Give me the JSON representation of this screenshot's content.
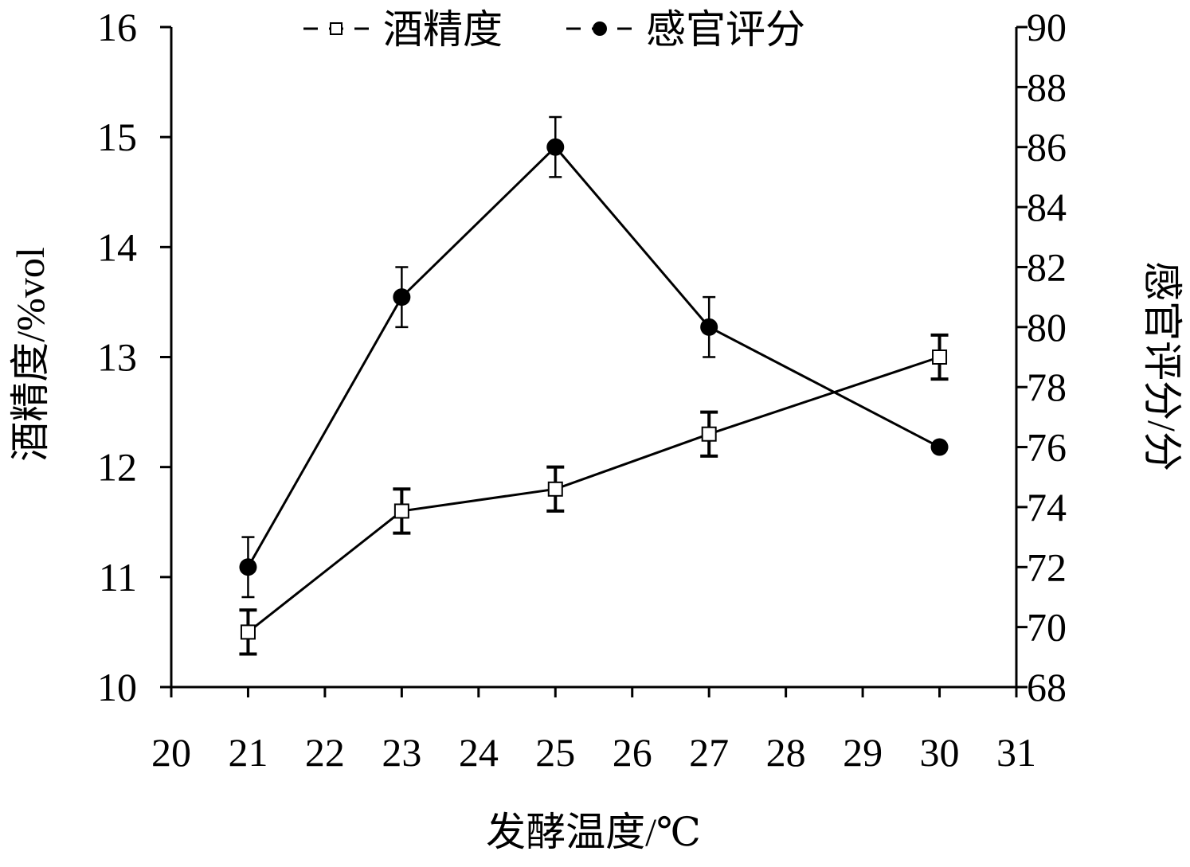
{
  "chart_data": {
    "type": "line",
    "xlabel": "发酵温度/℃",
    "ylabel_left": "酒精度/%vol",
    "ylabel_right": "感官评分/分",
    "x_ticks": [
      20,
      21,
      22,
      23,
      24,
      25,
      26,
      27,
      28,
      29,
      30,
      31
    ],
    "xlim": [
      20,
      31
    ],
    "ylim_left": [
      10,
      16
    ],
    "ylim_right": [
      68,
      90
    ],
    "y_ticks_left": [
      10,
      11,
      12,
      13,
      14,
      15,
      16
    ],
    "y_ticks_right": [
      68,
      70,
      72,
      74,
      76,
      78,
      80,
      82,
      84,
      86,
      88,
      90
    ],
    "grid": false,
    "legend_position": "top-center",
    "series": [
      {
        "name": "酒精度",
        "axis": "left",
        "marker": "open-square",
        "x": [
          21,
          23,
          25,
          27,
          30
        ],
        "y": [
          10.5,
          11.6,
          11.8,
          12.3,
          13.0
        ],
        "error": [
          0.2,
          0.2,
          0.2,
          0.2,
          0.2
        ]
      },
      {
        "name": "感官评分",
        "axis": "right",
        "marker": "filled-circle",
        "x": [
          21,
          23,
          25,
          27,
          30
        ],
        "y": [
          72,
          81,
          86,
          80,
          76
        ],
        "error": [
          1.0,
          1.0,
          1.0,
          1.0,
          0
        ]
      }
    ]
  }
}
